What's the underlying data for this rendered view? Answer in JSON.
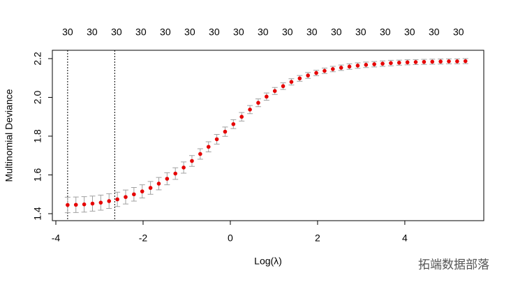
{
  "chart_data": {
    "type": "scatter",
    "xlabel": "Log(λ)",
    "ylabel": "Multinomial Deviance",
    "x": [
      -3.73,
      -3.54,
      -3.35,
      -3.16,
      -2.97,
      -2.78,
      -2.59,
      -2.4,
      -2.21,
      -2.02,
      -1.83,
      -1.64,
      -1.45,
      -1.26,
      -1.07,
      -0.88,
      -0.69,
      -0.5,
      -0.31,
      -0.12,
      0.07,
      0.26,
      0.45,
      0.64,
      0.83,
      1.02,
      1.21,
      1.4,
      1.59,
      1.78,
      1.97,
      2.16,
      2.35,
      2.54,
      2.73,
      2.92,
      3.11,
      3.3,
      3.49,
      3.68,
      3.87,
      4.06,
      4.25,
      4.44,
      4.63,
      4.82,
      5.01,
      5.2,
      5.39
    ],
    "values": [
      1.445,
      1.446,
      1.448,
      1.452,
      1.457,
      1.465,
      1.474,
      1.486,
      1.5,
      1.515,
      1.533,
      1.555,
      1.58,
      1.607,
      1.638,
      1.672,
      1.708,
      1.745,
      1.784,
      1.823,
      1.862,
      1.9,
      1.937,
      1.972,
      2.004,
      2.033,
      2.058,
      2.08,
      2.098,
      2.113,
      2.126,
      2.137,
      2.146,
      2.153,
      2.159,
      2.164,
      2.168,
      2.171,
      2.174,
      2.177,
      2.179,
      2.181,
      2.182,
      2.183,
      2.184,
      2.185,
      2.186,
      2.186,
      2.187
    ],
    "errors": [
      0.04,
      0.04,
      0.04,
      0.039,
      0.039,
      0.038,
      0.037,
      0.036,
      0.035,
      0.034,
      0.033,
      0.032,
      0.031,
      0.03,
      0.029,
      0.028,
      0.027,
      0.026,
      0.025,
      0.024,
      0.023,
      0.022,
      0.021,
      0.02,
      0.019,
      0.018,
      0.017,
      0.016,
      0.015,
      0.015,
      0.014,
      0.014,
      0.014,
      0.014,
      0.014,
      0.014,
      0.014,
      0.014,
      0.014,
      0.014,
      0.013,
      0.013,
      0.013,
      0.013,
      0.013,
      0.013,
      0.013,
      0.013,
      0.013
    ],
    "color": "#e60000",
    "error_color": "#a0a0a0",
    "xlim": [
      -4.08,
      5.81
    ],
    "ylim": [
      1.364,
      2.243
    ],
    "xticks": [
      -4,
      -2,
      0,
      2,
      4
    ],
    "yticks": [
      1.4,
      1.6,
      1.8,
      {
        "value": 2,
        "label": "2.0"
      },
      2.2
    ],
    "top_ticks": [
      {
        "value": -3.73,
        "label": "30"
      },
      {
        "value": -3.17,
        "label": "30"
      },
      {
        "value": -2.61,
        "label": "30"
      },
      {
        "value": -2.05,
        "label": "30"
      },
      {
        "value": -1.49,
        "label": "30"
      },
      {
        "value": -0.93,
        "label": "30"
      },
      {
        "value": -0.37,
        "label": "30"
      },
      {
        "value": 0.19,
        "label": "30"
      },
      {
        "value": 0.75,
        "label": "30"
      },
      {
        "value": 1.31,
        "label": "30"
      },
      {
        "value": 1.87,
        "label": "30"
      },
      {
        "value": 2.43,
        "label": "30"
      },
      {
        "value": 2.99,
        "label": "30"
      },
      {
        "value": 3.55,
        "label": "30"
      },
      {
        "value": 4.11,
        "label": "30"
      },
      {
        "value": 4.67,
        "label": "30"
      },
      {
        "value": 5.23,
        "label": "30"
      }
    ],
    "vlines": [
      -3.73,
      -2.65
    ],
    "watermark": "拓端数据部落"
  }
}
